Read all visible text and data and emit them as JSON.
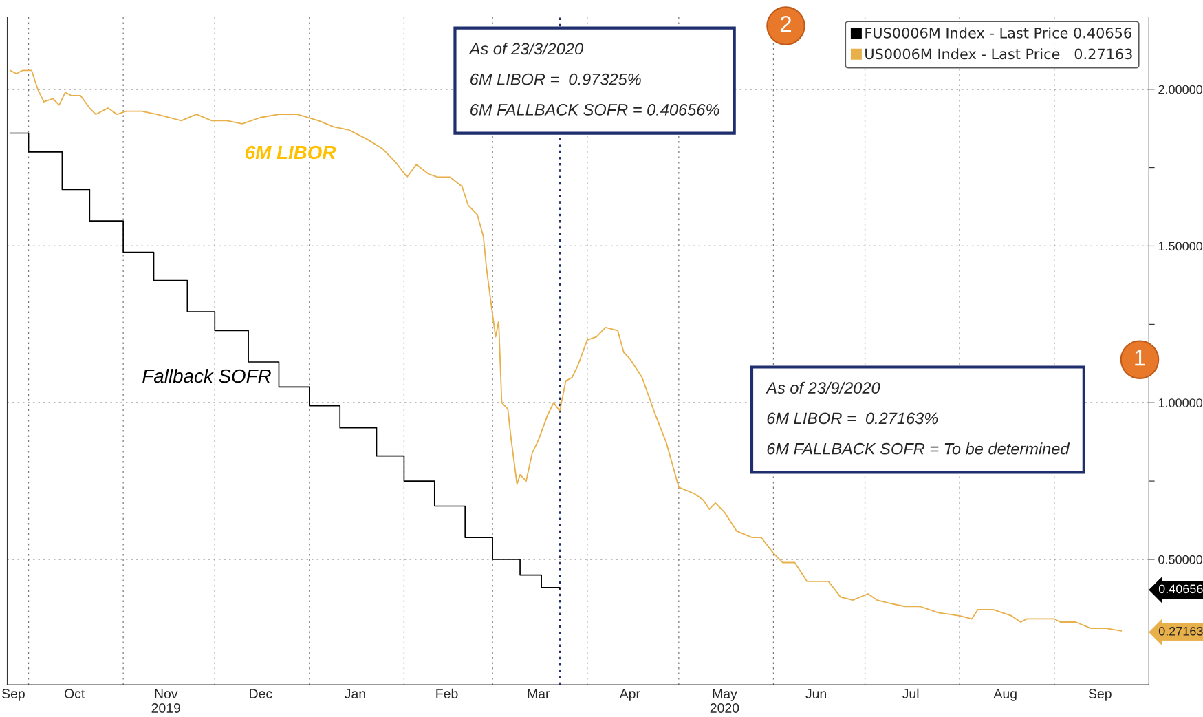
{
  "chart_data": {
    "type": "line",
    "series": [
      {
        "name": "FUS0006M Index - Last Price 0.40656",
        "type": "step",
        "color": "#000000",
        "x": [
          "2019-09-25",
          "2019-10-01",
          "2019-10-12",
          "2019-10-21",
          "2019-11-01",
          "2019-11-11",
          "2019-11-22",
          "2019-12-01",
          "2019-12-12",
          "2019-12-22",
          "2020-01-01",
          "2020-01-11",
          "2020-01-23",
          "2020-02-01",
          "2020-02-11",
          "2020-02-21",
          "2020-03-01",
          "2020-03-10",
          "2020-03-17",
          "2020-03-23"
        ],
        "values": [
          1.86,
          1.8,
          1.68,
          1.58,
          1.48,
          1.39,
          1.29,
          1.23,
          1.13,
          1.05,
          0.99,
          0.92,
          0.83,
          0.75,
          0.67,
          0.57,
          0.5,
          0.45,
          0.41,
          0.40656
        ]
      },
      {
        "name": "US0006M Index - Last Price   0.27163",
        "color": "#e8b04a",
        "x": [
          "2019-09-25",
          "2019-09-27",
          "2019-09-29",
          "2019-10-02",
          "2019-10-04",
          "2019-10-06",
          "2019-10-09",
          "2019-10-11",
          "2019-10-13",
          "2019-10-15",
          "2019-10-18",
          "2019-10-21",
          "2019-10-23",
          "2019-10-27",
          "2019-10-30",
          "2019-11-02",
          "2019-11-07",
          "2019-11-12",
          "2019-11-20",
          "2019-11-25",
          "2019-11-30",
          "2019-12-05",
          "2019-12-10",
          "2019-12-16",
          "2019-12-22",
          "2019-12-28",
          "2020-01-04",
          "2020-01-09",
          "2020-01-14",
          "2020-01-20",
          "2020-01-25",
          "2020-01-29",
          "2020-02-02",
          "2020-02-05",
          "2020-02-09",
          "2020-02-12",
          "2020-02-16",
          "2020-02-20",
          "2020-02-22",
          "2020-02-25",
          "2020-02-27",
          "2020-02-28",
          "2020-03-01",
          "2020-03-02",
          "2020-03-03",
          "2020-03-04",
          "2020-03-06",
          "2020-03-07",
          "2020-03-09",
          "2020-03-10",
          "2020-03-12",
          "2020-03-14",
          "2020-03-16",
          "2020-03-19",
          "2020-03-21",
          "2020-03-23",
          "2020-03-25",
          "2020-03-27",
          "2020-03-29",
          "2020-04-01",
          "2020-04-04",
          "2020-04-07",
          "2020-04-11",
          "2020-04-13",
          "2020-04-15",
          "2020-04-19",
          "2020-04-23",
          "2020-04-27",
          "2020-05-01",
          "2020-05-06",
          "2020-05-09",
          "2020-05-11",
          "2020-05-13",
          "2020-05-16",
          "2020-05-20",
          "2020-05-25",
          "2020-05-28",
          "2020-06-01",
          "2020-06-04",
          "2020-06-08",
          "2020-06-12",
          "2020-06-15",
          "2020-06-19",
          "2020-06-23",
          "2020-06-27",
          "2020-07-02",
          "2020-07-05",
          "2020-07-09",
          "2020-07-14",
          "2020-07-17",
          "2020-07-19",
          "2020-07-25",
          "2020-08-01",
          "2020-08-05",
          "2020-08-07",
          "2020-08-12",
          "2020-08-18",
          "2020-08-21",
          "2020-08-23",
          "2020-08-27",
          "2020-09-01",
          "2020-09-03",
          "2020-09-08",
          "2020-09-13",
          "2020-09-18",
          "2020-09-23"
        ],
        "values": [
          2.06,
          2.05,
          2.06,
          2.06,
          2.0,
          1.96,
          1.97,
          1.95,
          1.99,
          1.98,
          1.98,
          1.94,
          1.92,
          1.94,
          1.92,
          1.93,
          1.93,
          1.92,
          1.9,
          1.92,
          1.9,
          1.9,
          1.89,
          1.91,
          1.92,
          1.92,
          1.9,
          1.88,
          1.87,
          1.84,
          1.81,
          1.77,
          1.72,
          1.76,
          1.73,
          1.72,
          1.72,
          1.69,
          1.63,
          1.6,
          1.53,
          1.43,
          1.28,
          1.21,
          1.26,
          1.0,
          0.98,
          0.89,
          0.74,
          0.77,
          0.75,
          0.84,
          0.88,
          0.96,
          1.0,
          0.97325,
          1.07,
          1.08,
          1.12,
          1.2,
          1.21,
          1.24,
          1.23,
          1.16,
          1.14,
          1.08,
          0.97,
          0.87,
          0.73,
          0.71,
          0.69,
          0.66,
          0.68,
          0.65,
          0.59,
          0.57,
          0.57,
          0.52,
          0.49,
          0.49,
          0.43,
          0.43,
          0.43,
          0.38,
          0.37,
          0.39,
          0.37,
          0.36,
          0.35,
          0.35,
          0.35,
          0.33,
          0.32,
          0.31,
          0.34,
          0.34,
          0.32,
          0.3,
          0.31,
          0.31,
          0.31,
          0.3,
          0.3,
          0.28,
          0.28,
          0.27163
        ]
      }
    ],
    "xlim": [
      "2019-09-24",
      "2020-10-02"
    ],
    "xticks": [
      {
        "value": "2019-10-01",
        "label": null
      },
      {
        "value": "2019-11-01",
        "label": null
      },
      {
        "value": "2019-12-01",
        "label": null
      },
      {
        "value": "2020-01-01",
        "label": null
      },
      {
        "value": "2020-02-01",
        "label": null
      },
      {
        "value": "2020-03-01",
        "label": null
      },
      {
        "value": "2020-04-01",
        "label": null
      },
      {
        "value": "2020-05-01",
        "label": null
      },
      {
        "value": "2020-06-01",
        "label": null
      },
      {
        "value": "2020-07-01",
        "label": null
      },
      {
        "value": "2020-08-01",
        "label": null
      },
      {
        "value": "2020-09-01",
        "label": null
      },
      {
        "value": "2019-09-26",
        "label": "Sep"
      },
      {
        "value": "2019-10-16",
        "label": "Oct"
      },
      {
        "value": "2019-11-15",
        "label": "Nov\n2019"
      },
      {
        "value": "2019-12-16",
        "label": "Dec"
      },
      {
        "value": "2020-01-16",
        "label": "Jan"
      },
      {
        "value": "2020-02-15",
        "label": "Feb"
      },
      {
        "value": "2020-03-16",
        "label": "Mar"
      },
      {
        "value": "2020-04-15",
        "label": "Apr"
      },
      {
        "value": "2020-05-16",
        "label": "May\n2020"
      },
      {
        "value": "2020-06-15",
        "label": "Jun"
      },
      {
        "value": "2020-07-16",
        "label": "Jul"
      },
      {
        "value": "2020-08-16",
        "label": "Aug"
      },
      {
        "value": "2020-09-16",
        "label": "Sep"
      }
    ],
    "ylim": [
      0.1,
      2.23
    ],
    "yticks": [
      {
        "value": 0.5,
        "label": "0.50000"
      },
      {
        "value": 0.75,
        "label": null
      },
      {
        "value": 1.0,
        "label": "1.00000"
      },
      {
        "value": 1.25,
        "label": null
      },
      {
        "value": 1.5,
        "label": "1.50000"
      },
      {
        "value": 1.75,
        "label": null
      },
      {
        "value": 2.0,
        "label": "2.00000"
      }
    ],
    "y2lim": [
      0.1,
      2.23
    ],
    "y2ticks": [
      {
        "value": 0.40656,
        "label": "0.40656"
      },
      {
        "value": 0.27163,
        "label": "0.27163"
      }
    ],
    "grid": true,
    "legend": "top right",
    "ref_lines": [
      {
        "axis": "x",
        "value": "2020-03-23",
        "color": "#1f2f6e",
        "line_style": "dotted"
      }
    ],
    "annotations": [
      "6M LIBOR",
      "Fallback SOFR",
      "As of 23/3/2020\n6M LIBOR =  0.97325%\n6M FALLBACK SOFR = 0.40656%",
      "2",
      "As of 23/9/2020\n6M LIBOR =  0.27163%\n6M FALLBACK SOFR = To be determined",
      "1"
    ]
  }
}
